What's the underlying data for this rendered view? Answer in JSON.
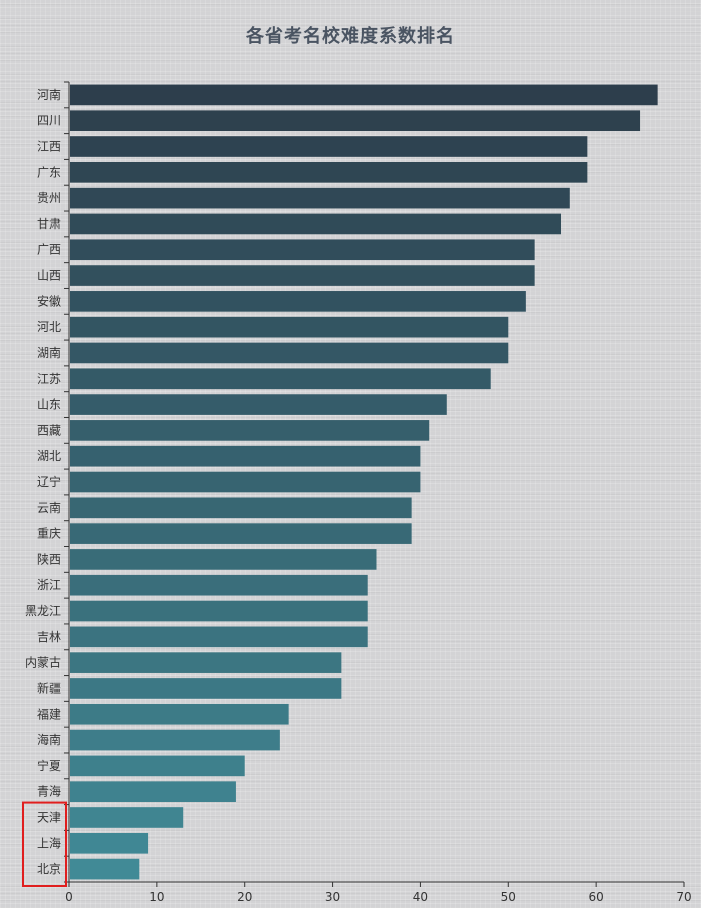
{
  "chart_data": {
    "type": "bar",
    "orientation": "horizontal",
    "title": "各省考名校难度系数排名",
    "categories": [
      "河南",
      "四川",
      "江西",
      "广东",
      "贵州",
      "甘肃",
      "广西",
      "山西",
      "安徽",
      "河北",
      "湖南",
      "江苏",
      "山东",
      "西藏",
      "湖北",
      "辽宁",
      "云南",
      "重庆",
      "陕西",
      "浙江",
      "黑龙江",
      "吉林",
      "内蒙古",
      "新疆",
      "福建",
      "海南",
      "宁夏",
      "青海",
      "天津",
      "上海",
      "北京"
    ],
    "values": [
      67,
      65,
      59,
      59,
      57,
      56,
      53,
      53,
      52,
      50,
      50,
      48,
      43,
      41,
      40,
      40,
      39,
      39,
      35,
      34,
      34,
      34,
      31,
      31,
      25,
      24,
      20,
      19,
      13,
      9,
      8
    ],
    "xlim": [
      0,
      70
    ],
    "xticks": [
      0,
      10,
      20,
      30,
      40,
      50,
      60,
      70
    ],
    "xlabel": "",
    "ylabel": "",
    "grid": false,
    "legend": "none",
    "highlighted_categories": [
      "天津",
      "上海",
      "北京"
    ],
    "colors": {
      "bar_start": "#2d3e4c",
      "bar_end": "#418a96",
      "highlight_box": "#e01e1e",
      "axis": "#333333",
      "title": "#4a5462"
    }
  }
}
